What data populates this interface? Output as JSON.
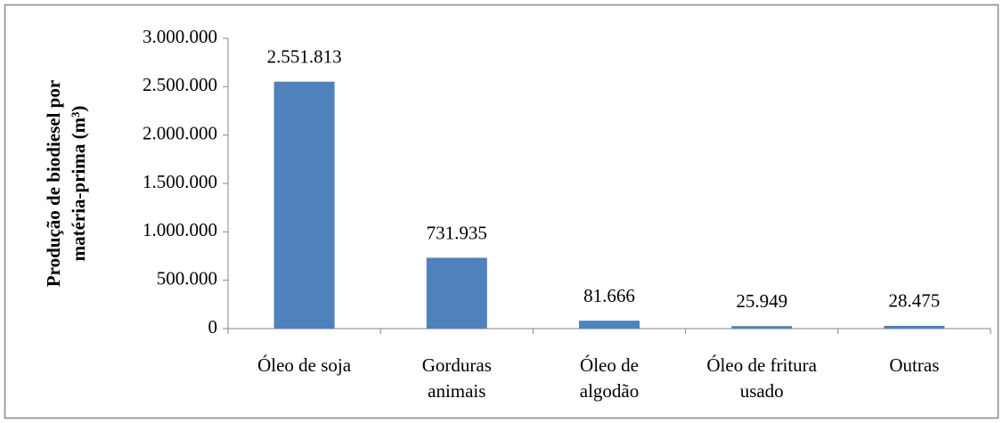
{
  "chart_data": {
    "type": "bar",
    "ylabel": [
      "Produção de biodiesel por",
      "matéria-prima (m³)"
    ],
    "categories": [
      [
        "Óleo de soja"
      ],
      [
        "Gorduras",
        "animais"
      ],
      [
        "Óleo de",
        "algodão"
      ],
      [
        "Óleo de fritura",
        "usado"
      ],
      [
        "Outras"
      ]
    ],
    "values": [
      2551813,
      731935,
      81666,
      25949,
      28475
    ],
    "value_labels": [
      "2.551.813",
      "731.935",
      "81.666",
      "25.949",
      "28.475"
    ],
    "color": "#4f81bd",
    "ylim": [
      0,
      3000000
    ],
    "yticks": [
      0,
      {
        "value": 500000,
        "label": "500.000"
      },
      {
        "value": 1000000,
        "label": "1.000.000"
      },
      {
        "value": 1500000,
        "label": "1.500.000"
      },
      {
        "value": 2000000,
        "label": "2.000.000"
      },
      {
        "value": 2500000,
        "label": "2.500.000"
      },
      {
        "value": 3000000,
        "label": "3.000.000"
      }
    ],
    "grid": false
  }
}
